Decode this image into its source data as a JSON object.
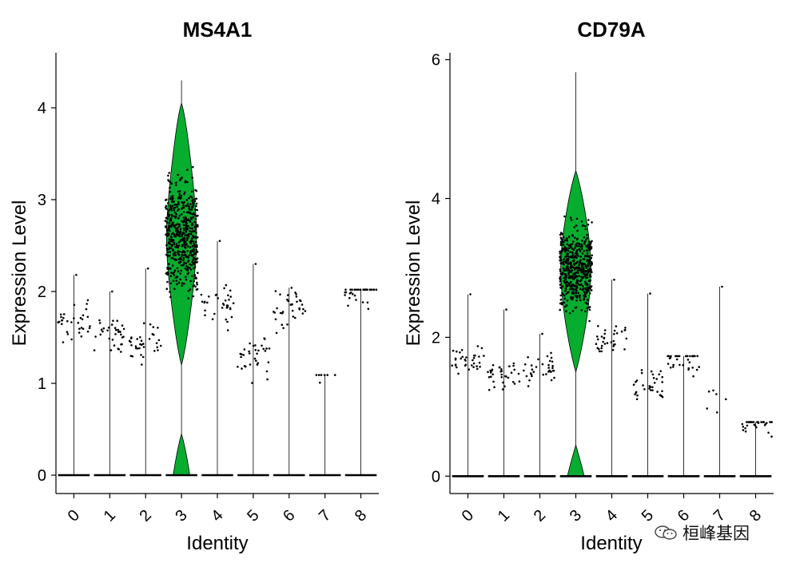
{
  "chart_data": [
    {
      "type": "violin",
      "title": "MS4A1",
      "xlabel": "Identity",
      "ylabel": "Expression Level",
      "categories": [
        "0",
        "1",
        "2",
        "3",
        "4",
        "5",
        "6",
        "7",
        "8"
      ],
      "ylim": [
        -0.2,
        4.6
      ],
      "yticks": [
        0,
        1,
        2,
        3,
        4
      ],
      "fill_color": "#07ad2f",
      "max_values": [
        2.18,
        2.0,
        2.25,
        4.3,
        2.55,
        2.3,
        2.04,
        1.09,
        2.02
      ],
      "nonzero_median": [
        1.68,
        1.55,
        1.45,
        2.6,
        1.85,
        1.3,
        1.8,
        1.09,
        2.02
      ]
    },
    {
      "type": "violin",
      "title": "CD79A",
      "xlabel": "Identity",
      "ylabel": "Expression Level",
      "categories": [
        "0",
        "1",
        "2",
        "3",
        "4",
        "5",
        "6",
        "7",
        "8"
      ],
      "ylim": [
        -0.25,
        6.1
      ],
      "yticks": [
        0,
        2,
        4,
        6
      ],
      "fill_color": "#07ad2f",
      "max_values": [
        2.62,
        2.4,
        2.05,
        5.82,
        2.83,
        2.63,
        1.73,
        2.73,
        0.78
      ],
      "nonzero_median": [
        1.7,
        1.45,
        1.55,
        3.0,
        2.0,
        1.3,
        1.7,
        1.1,
        0.78
      ]
    }
  ],
  "watermark": {
    "text": "桓峰基因",
    "icon": "wechat-icon"
  }
}
